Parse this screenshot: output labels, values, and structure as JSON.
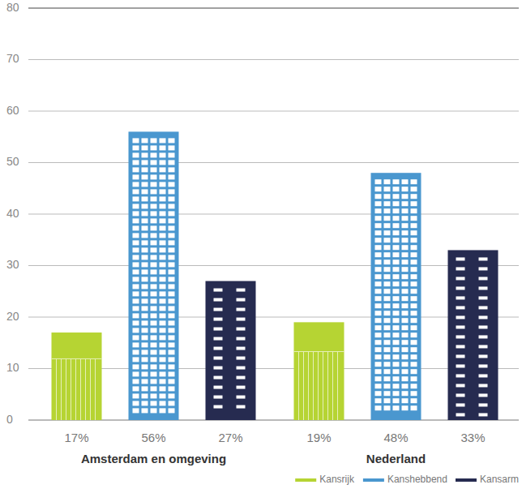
{
  "chart_data": {
    "type": "bar",
    "categories": [
      "Amsterdam en omgeving",
      "Nederland"
    ],
    "series": [
      {
        "name": "Kansrijk",
        "color": "#b6d433",
        "values": [
          17,
          19
        ],
        "value_labels": [
          "17%",
          "19%"
        ]
      },
      {
        "name": "Kanshebbend",
        "color": "#4a97cf",
        "values": [
          56,
          48
        ],
        "value_labels": [
          "56%",
          "48%"
        ]
      },
      {
        "name": "Kansarm",
        "color": "#262b50",
        "values": [
          27,
          33
        ],
        "value_labels": [
          "27%",
          "33%"
        ]
      }
    ],
    "ylim": [
      0,
      80
    ],
    "yticks": [
      0,
      10,
      20,
      30,
      40,
      50,
      60,
      70,
      80
    ],
    "grid": true,
    "legend": "bottom-right",
    "data_labels": true
  }
}
